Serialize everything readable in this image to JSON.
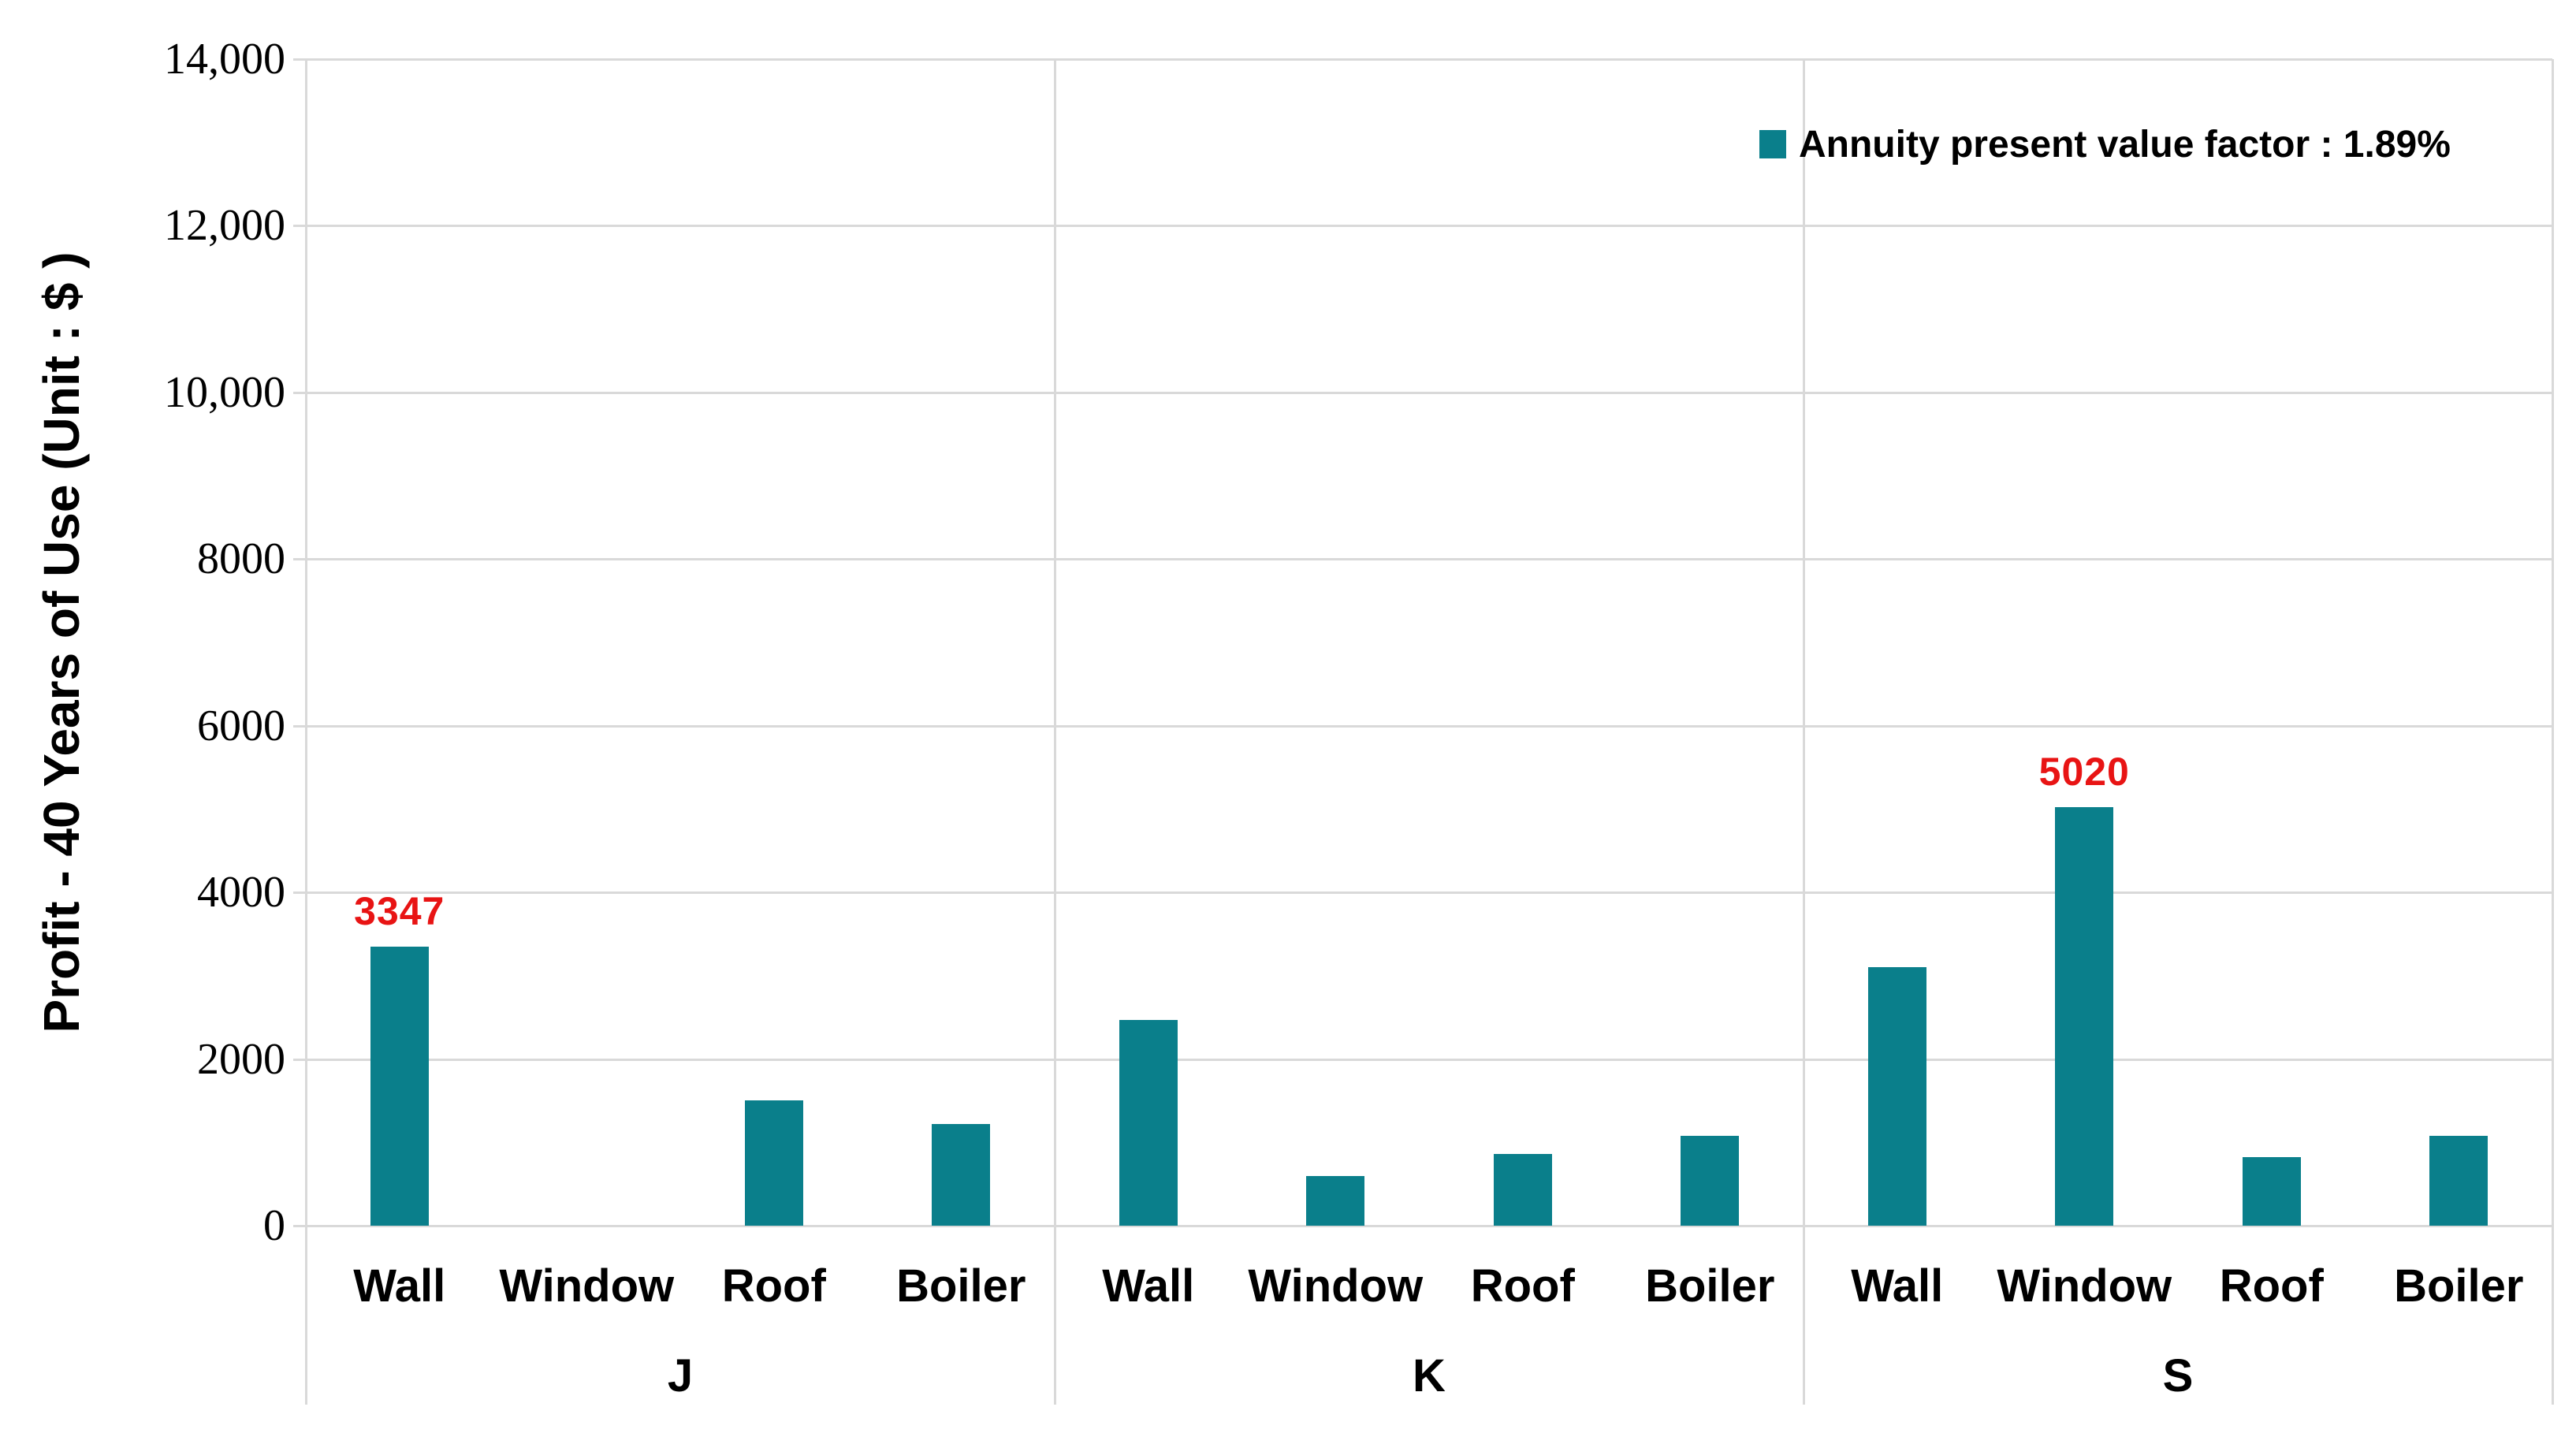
{
  "chart_data": {
    "type": "bar",
    "title": "",
    "ylabel": "Profit - 40 Years of Use  (Unit : $ )",
    "xlabel": "",
    "ylim": [
      0,
      14000
    ],
    "ytick_interval": 2000,
    "yticks": [
      {
        "value": 14000,
        "label": "14,000"
      },
      {
        "value": 12000,
        "label": "12,000"
      },
      {
        "value": 10000,
        "label": "10,000"
      },
      {
        "value": 8000,
        "label": "8000"
      },
      {
        "value": 6000,
        "label": "6000"
      },
      {
        "value": 4000,
        "label": "4000"
      },
      {
        "value": 2000,
        "label": "2000"
      },
      {
        "value": 0,
        "label": "0"
      }
    ],
    "grid": true,
    "legend_position": "top-right",
    "legend": {
      "label": "Annuity present value factor : 1.89%"
    },
    "groups": [
      {
        "label": "J",
        "categories": [
          "Wall",
          "Window",
          "Roof",
          "Boiler"
        ],
        "values": [
          3347,
          0,
          1500,
          1220
        ]
      },
      {
        "label": "K",
        "categories": [
          "Wall",
          "Window",
          "Roof",
          "Boiler"
        ],
        "values": [
          2470,
          600,
          860,
          1080
        ]
      },
      {
        "label": "S",
        "categories": [
          "Wall",
          "Window",
          "Roof",
          "Boiler"
        ],
        "values": [
          3100,
          5020,
          820,
          1080
        ]
      }
    ],
    "data_labels": [
      {
        "group_index": 0,
        "slot_index": 0,
        "text": "3347"
      },
      {
        "group_index": 2,
        "slot_index": 1,
        "text": "5020"
      }
    ]
  },
  "colors": {
    "bar": "#0a7f8b",
    "data_label": "#e81414",
    "grid": "#d9d9d9",
    "text": "#000000",
    "background": "#ffffff"
  }
}
